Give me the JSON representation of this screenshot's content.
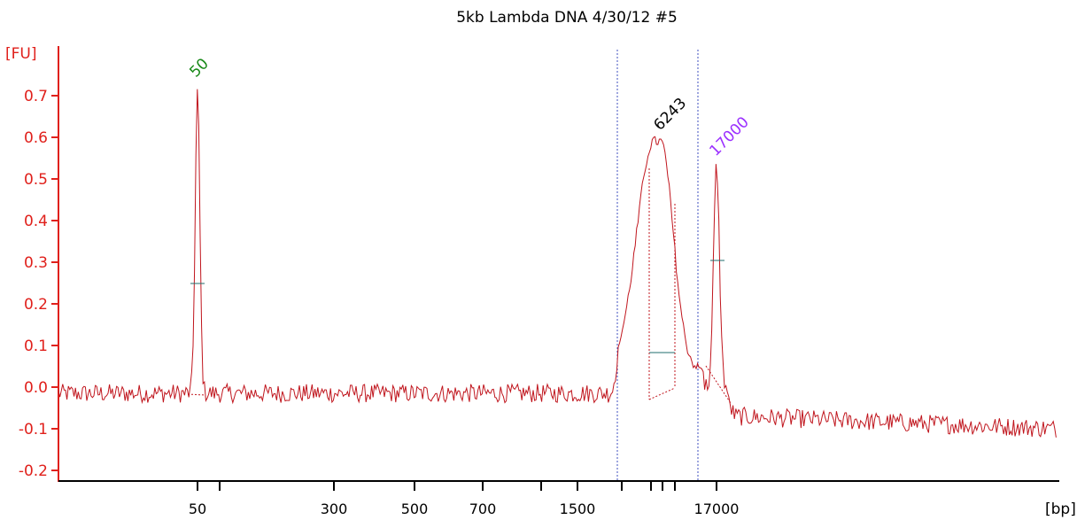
{
  "chart_data": {
    "type": "line",
    "title": "5kb Lambda DNA 4/30/12 #5",
    "ylabel": "[FU]",
    "xlabel": "[bp]",
    "ylim": [
      -0.22,
      0.78
    ],
    "yticks": [
      "-0.2",
      "-0.1",
      "0.0",
      "0.1",
      "0.2",
      "0.3",
      "0.4",
      "0.5",
      "0.6",
      "0.7"
    ],
    "xticks": [
      "50",
      "300",
      "500",
      "700",
      "1500",
      "17000"
    ],
    "grid": false,
    "peaks": [
      {
        "label": "50",
        "height": 0.71,
        "color": "#1a8a1a"
      },
      {
        "label": "6243",
        "height": 0.59,
        "color": "#000000"
      },
      {
        "label": "17000",
        "height": 0.52,
        "color": "#9b30ff"
      }
    ],
    "colors": {
      "trace": "#c0151d",
      "axis": "#e0201b",
      "region_marker": "#3f4fbf"
    }
  }
}
